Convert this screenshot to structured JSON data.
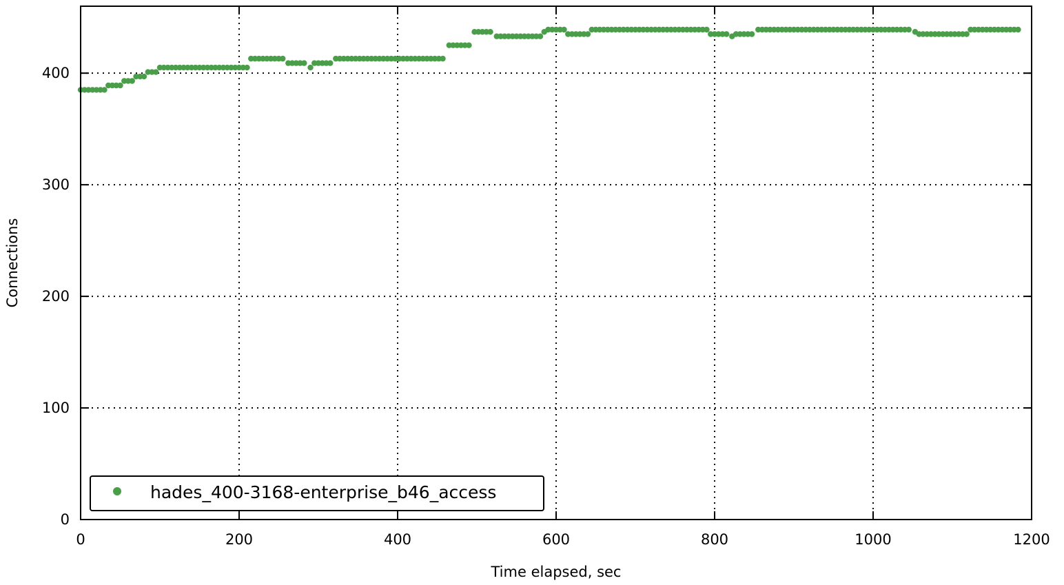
{
  "chart_data": {
    "type": "scatter",
    "xlabel": "Time elapsed, sec",
    "ylabel": "Connections",
    "xlim": [
      0,
      1200
    ],
    "ylim": [
      0,
      460
    ],
    "xticks": [
      0,
      200,
      400,
      600,
      800,
      1000,
      1200
    ],
    "yticks": [
      0,
      100,
      200,
      300,
      400
    ],
    "grid": true,
    "legend_position": "lower-left",
    "series": [
      {
        "name": "hades_400-3168-enterprise_b46_access",
        "color": "#4a9e4a",
        "segments": [
          {
            "x_start": 0,
            "x_end": 30,
            "y": 385
          },
          {
            "x_start": 35,
            "x_end": 50,
            "y": 389
          },
          {
            "x_start": 55,
            "x_end": 65,
            "y": 393
          },
          {
            "x_start": 70,
            "x_end": 80,
            "y": 397
          },
          {
            "x_start": 85,
            "x_end": 95,
            "y": 401
          },
          {
            "x_start": 100,
            "x_end": 210,
            "y": 405
          },
          {
            "x_start": 215,
            "x_end": 255,
            "y": 413
          },
          {
            "x_start": 262,
            "x_end": 285,
            "y": 409
          },
          {
            "x_start": 290,
            "x_end": 290,
            "y": 405
          },
          {
            "x_start": 295,
            "x_end": 318,
            "y": 409
          },
          {
            "x_start": 322,
            "x_end": 458,
            "y": 413
          },
          {
            "x_start": 465,
            "x_end": 492,
            "y": 425
          },
          {
            "x_start": 497,
            "x_end": 520,
            "y": 437
          },
          {
            "x_start": 525,
            "x_end": 580,
            "y": 433
          },
          {
            "x_start": 585,
            "x_end": 585,
            "y": 437
          },
          {
            "x_start": 590,
            "x_end": 610,
            "y": 439
          },
          {
            "x_start": 615,
            "x_end": 640,
            "y": 435
          },
          {
            "x_start": 645,
            "x_end": 790,
            "y": 439
          },
          {
            "x_start": 795,
            "x_end": 818,
            "y": 435
          },
          {
            "x_start": 822,
            "x_end": 822,
            "y": 433
          },
          {
            "x_start": 827,
            "x_end": 850,
            "y": 435
          },
          {
            "x_start": 855,
            "x_end": 1048,
            "y": 439
          },
          {
            "x_start": 1053,
            "x_end": 1053,
            "y": 437
          },
          {
            "x_start": 1058,
            "x_end": 1118,
            "y": 435
          },
          {
            "x_start": 1123,
            "x_end": 1185,
            "y": 439
          }
        ]
      }
    ]
  }
}
